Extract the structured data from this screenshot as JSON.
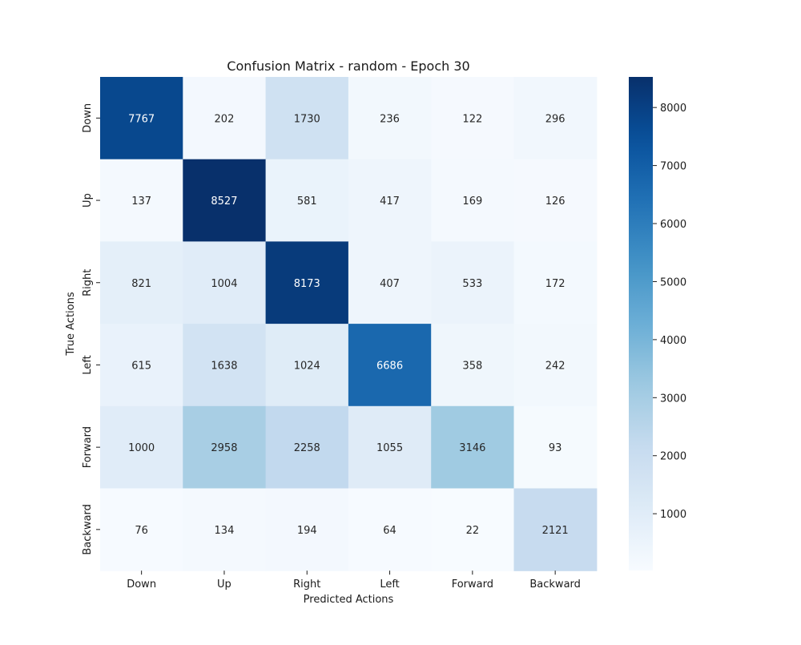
{
  "chart_data": {
    "type": "heatmap",
    "title": "Confusion Matrix - random - Epoch 30",
    "xlabel": "Predicted Actions",
    "ylabel": "True Actions",
    "x_categories": [
      "Down",
      "Up",
      "Right",
      "Left",
      "Forward",
      "Backward"
    ],
    "y_categories": [
      "Down",
      "Up",
      "Right",
      "Left",
      "Forward",
      "Backward"
    ],
    "values": [
      [
        7767,
        202,
        1730,
        236,
        122,
        296
      ],
      [
        137,
        8527,
        581,
        417,
        169,
        126
      ],
      [
        821,
        1004,
        8173,
        407,
        533,
        172
      ],
      [
        615,
        1638,
        1024,
        6686,
        358,
        242
      ],
      [
        1000,
        2958,
        2258,
        1055,
        3146,
        93
      ],
      [
        76,
        134,
        194,
        64,
        22,
        2121
      ]
    ],
    "colormap": "Blues",
    "vmin": 22,
    "vmax": 8527,
    "colorbar_ticks": [
      1000,
      2000,
      3000,
      4000,
      5000,
      6000,
      7000,
      8000
    ],
    "annotations": true
  }
}
